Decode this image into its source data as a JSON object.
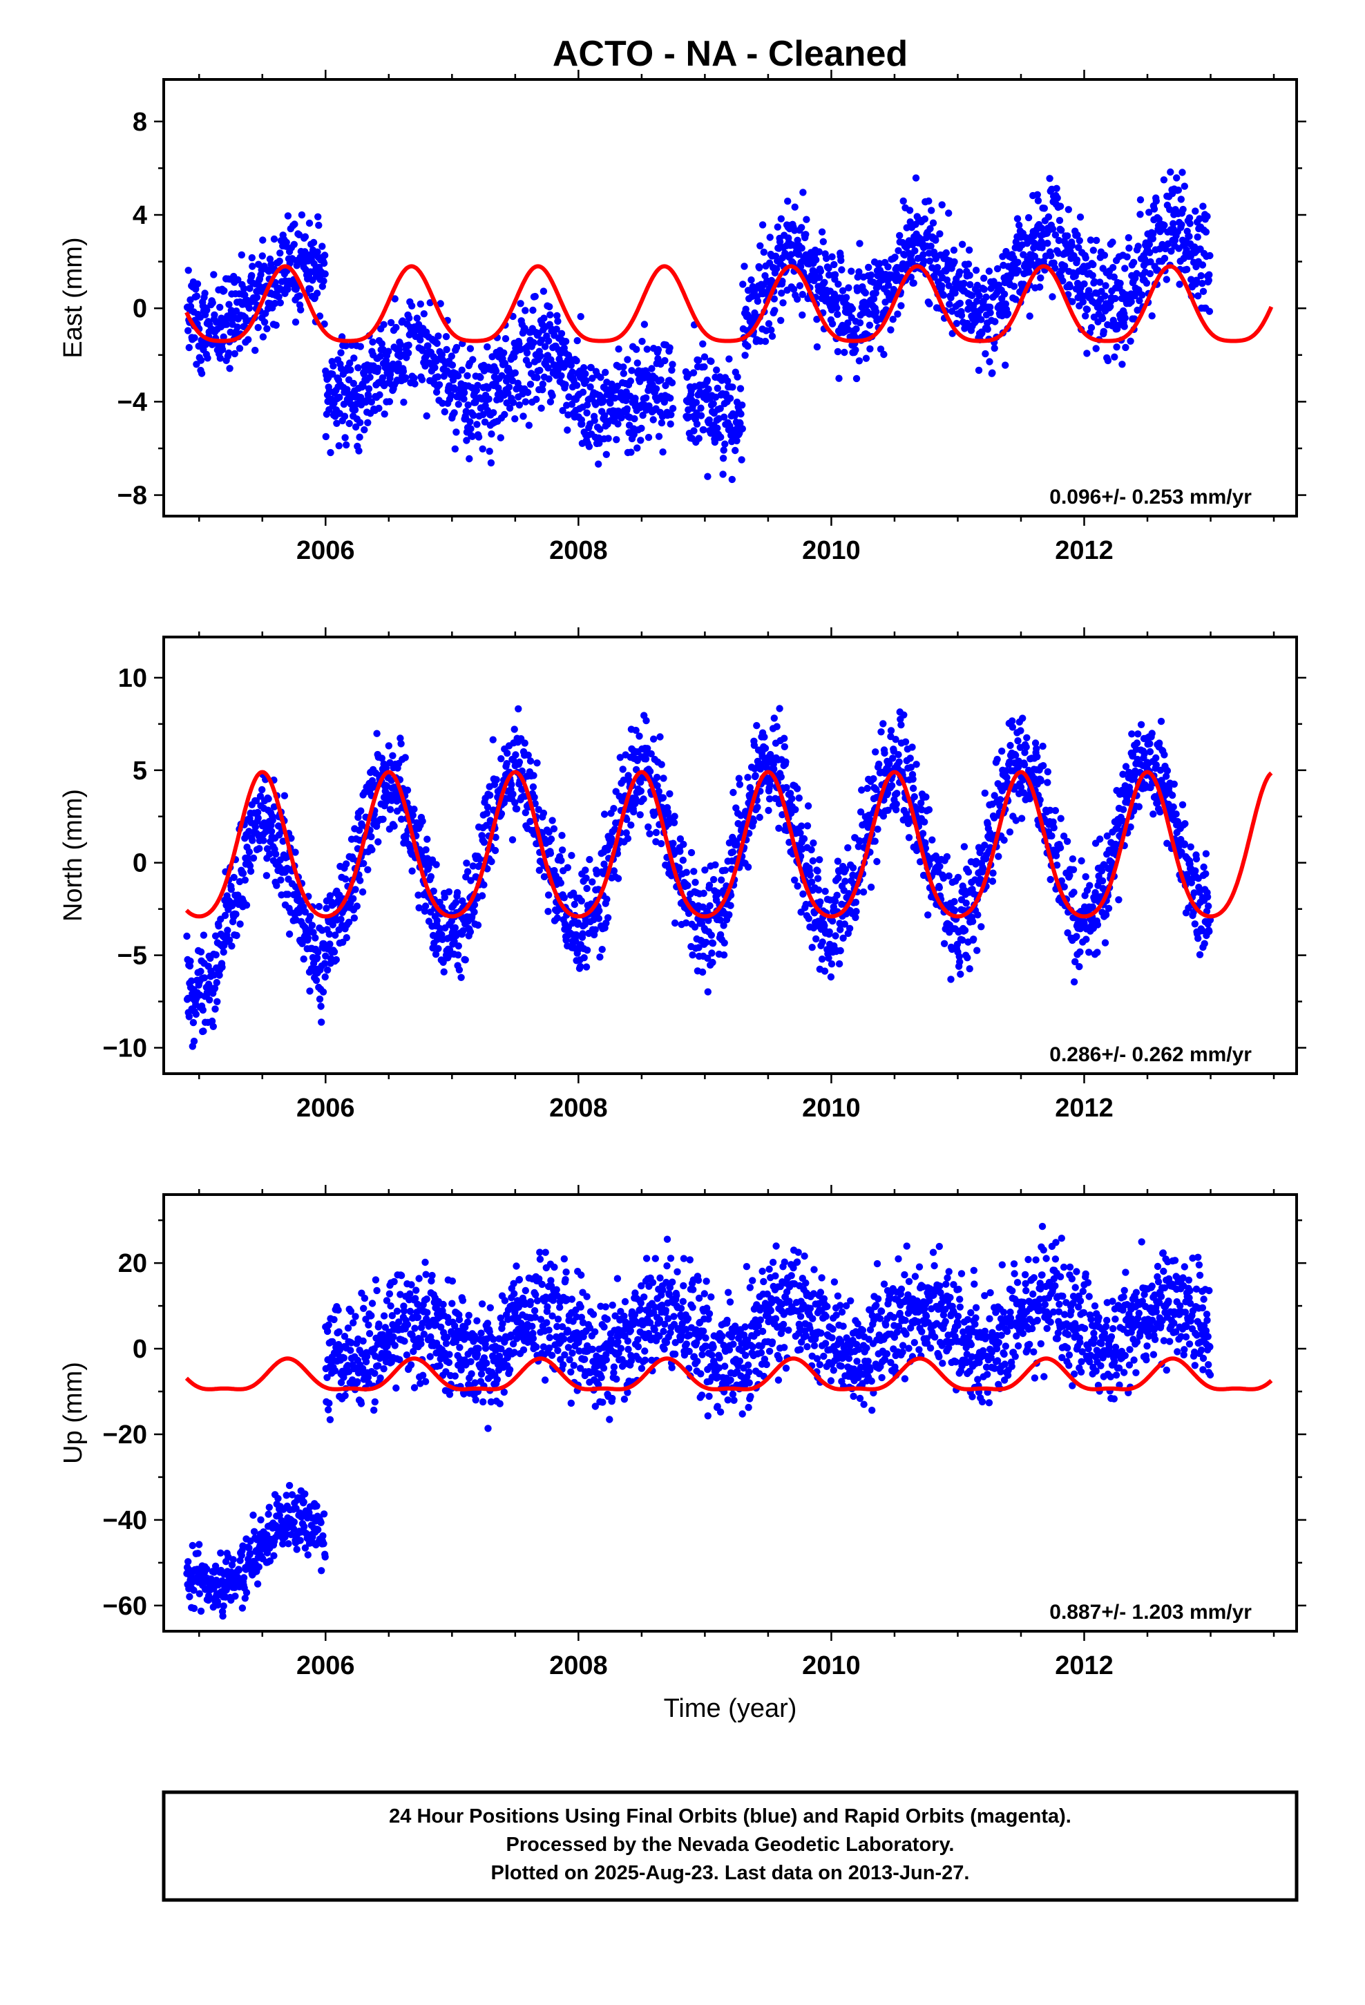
{
  "page": {
    "title": "ACTO  - NA - Cleaned",
    "footer": [
      "24 Hour Positions Using Final Orbits (blue) and Rapid Orbits (magenta).",
      "Processed by the Nevada Geodetic Laboratory.",
      "Plotted on 2025-Aug-23. Last data on 2013-Jun-27."
    ]
  },
  "colors": {
    "points": "#0000ff",
    "model": "#ff0000",
    "frame": "#000000"
  },
  "chart_data": [
    {
      "type": "scatter",
      "component": "east",
      "ylabel": "East (mm)",
      "xlabel": "",
      "xlim": [
        2004.72,
        2013.68
      ],
      "ylim": [
        -8.9,
        9.8
      ],
      "xticks": [
        2006,
        2008,
        2010,
        2012
      ],
      "yticks": [
        -8,
        -4,
        0,
        4,
        8
      ],
      "ytick_labels": [
        "−8",
        "−4",
        "0",
        "4",
        "8"
      ],
      "rate": "0.096+/- 0.253 mm/yr",
      "series": [
        {
          "kind": "points",
          "data_segments": [
            {
              "x": [
                2004.9,
                2006.0
              ],
              "center": [
                -0.5,
                1.5
              ],
              "annual": 0.9,
              "phase": 0.7,
              "noise": 1.1
            },
            {
              "x": [
                2006.0,
                2008.4
              ],
              "center": [
                -2.5,
                -3.2
              ],
              "annual": 1.2,
              "phase": 0.7,
              "noise": 1.1
            },
            {
              "x": [
                2008.4,
                2008.75
              ],
              "center": [
                -3.8,
                -3.8
              ],
              "annual": 0.5,
              "phase": 0.7,
              "noise": 1.2
            },
            {
              "x": [
                2008.85,
                2009.3
              ],
              "center": [
                -4.0,
                -4.0
              ],
              "annual": 0.3,
              "phase": 0.7,
              "noise": 1.1
            },
            {
              "x": [
                2009.3,
                2013.0
              ],
              "center": [
                0.6,
                2.0
              ],
              "annual": 1.5,
              "phase": 0.7,
              "noise": 1.1
            }
          ]
        },
        {
          "kind": "model",
          "annual": 1.6,
          "phase": 0.68,
          "semiannual": 0.35,
          "offset": -0.15
        }
      ]
    },
    {
      "type": "scatter",
      "component": "north",
      "ylabel": "North (mm)",
      "xlabel": "",
      "xlim": [
        2004.72,
        2013.68
      ],
      "ylim": [
        -11.4,
        12.2
      ],
      "xticks": [
        2006,
        2008,
        2010,
        2012
      ],
      "yticks": [
        -10,
        -5,
        0,
        5,
        10
      ],
      "ytick_labels": [
        "−10",
        "−5",
        "0",
        "5",
        "10"
      ],
      "rate": "0.286+/- 0.262 mm/yr",
      "series": [
        {
          "kind": "points",
          "data_segments": [
            {
              "x": [
                2004.9,
                2006.0
              ],
              "center": [
                -3.0,
                -1.5
              ],
              "annual": 4.0,
              "phase": 0.5,
              "noise": 1.4
            },
            {
              "x": [
                2006.0,
                2013.0
              ],
              "center": [
                0.3,
                1.3
              ],
              "annual": 4.2,
              "phase": 0.5,
              "noise": 1.4
            }
          ]
        },
        {
          "kind": "model",
          "annual": 3.9,
          "phase": 0.5,
          "semiannual": 0.6,
          "offset": 0.4
        }
      ]
    },
    {
      "type": "scatter",
      "component": "up",
      "ylabel": "Up (mm)",
      "xlabel": "Time (year)",
      "xlim": [
        2004.72,
        2013.68
      ],
      "ylim": [
        -66,
        36
      ],
      "xticks": [
        2006,
        2008,
        2010,
        2012
      ],
      "yticks": [
        -60,
        -40,
        -20,
        0,
        20
      ],
      "ytick_labels": [
        "−60",
        "−40",
        "−20",
        "0",
        "20"
      ],
      "rate": "0.887+/- 1.203 mm/yr",
      "series": [
        {
          "kind": "points",
          "data_segments": [
            {
              "x": [
                2004.9,
                2006.0
              ],
              "center": [
                -53,
                -42
              ],
              "annual": 5.0,
              "phase": 0.7,
              "noise": 3.8
            },
            {
              "x": [
                2006.0,
                2013.0
              ],
              "center": [
                2.0,
                6.0
              ],
              "annual": 5.0,
              "phase": 0.7,
              "noise": 6.5
            }
          ]
        },
        {
          "kind": "model",
          "annual": 3.5,
          "phase": 0.7,
          "semiannual": 1.2,
          "offset": -7.0
        }
      ]
    }
  ]
}
